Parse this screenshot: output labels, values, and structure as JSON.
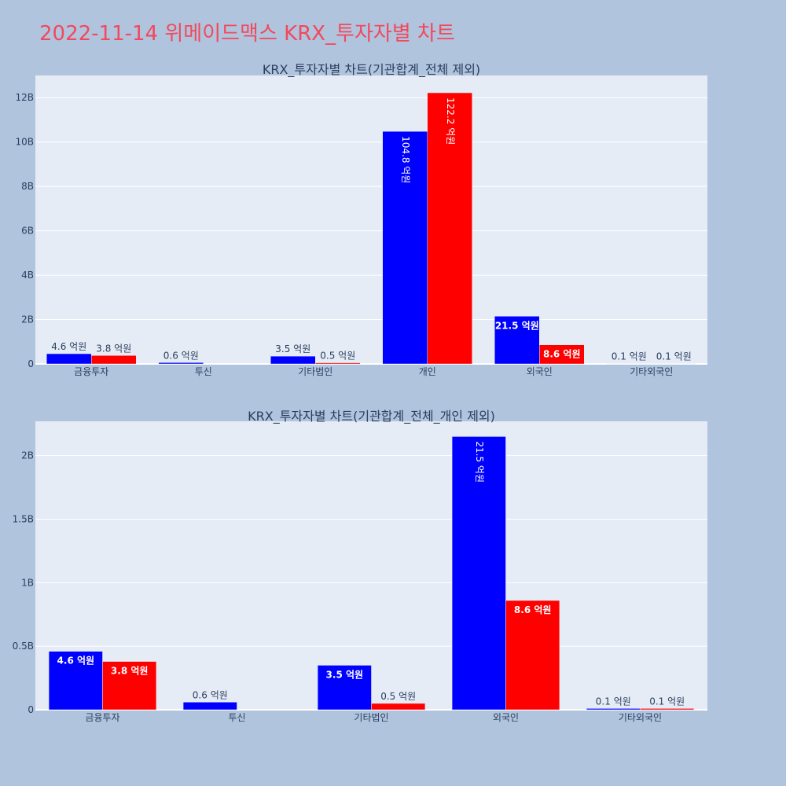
{
  "page": {
    "title": "2022-11-14 위메이드맥스 KRX_투자자별 차트"
  },
  "colors": {
    "background": "#b0c4de",
    "plot_bg": "#e5ecf6",
    "buy": "#0000ff",
    "sell": "#ff0000",
    "text": "#2a3f5f"
  },
  "chart_data": [
    {
      "type": "bar",
      "title": "KRX_투자자별 차트(기관합계_전체 제외)",
      "categories": [
        "금융투자",
        "투신",
        "기타법인",
        "개인",
        "외국인",
        "기타외국인"
      ],
      "series": [
        {
          "color": "#0000ff",
          "values": [
            460000000,
            60000000,
            350000000,
            10480000000,
            2150000000,
            10000000
          ],
          "labels": [
            "4.6 억원",
            "0.6 억원",
            "3.5 억원",
            "104.8 억원",
            "21.5 억원",
            "0.1 억원"
          ]
        },
        {
          "color": "#ff0000",
          "values": [
            380000000,
            0,
            50000000,
            12220000000,
            860000000,
            10000000
          ],
          "labels": [
            "3.8 억원",
            "",
            "0.5 억원",
            "122.2 억원",
            "8.6 억원",
            "0.1 억원"
          ]
        }
      ],
      "ylim": [
        0,
        13000000000
      ],
      "yticks": [
        0,
        2000000000,
        4000000000,
        6000000000,
        8000000000,
        10000000000,
        12000000000
      ],
      "ytick_labels": [
        "0",
        "2B",
        "4B",
        "6B",
        "8B",
        "10B",
        "12B"
      ],
      "grid": true
    },
    {
      "type": "bar",
      "title": "KRX_투자자별 차트(기관합계_전체_개인 제외)",
      "categories": [
        "금융투자",
        "투신",
        "기타법인",
        "외국인",
        "기타외국인"
      ],
      "series": [
        {
          "color": "#0000ff",
          "values": [
            460000000,
            60000000,
            350000000,
            2150000000,
            10000000
          ],
          "labels": [
            "4.6 억원",
            "0.6 억원",
            "3.5 억원",
            "21.5 억원",
            "0.1 억원"
          ]
        },
        {
          "color": "#ff0000",
          "values": [
            380000000,
            0,
            50000000,
            860000000,
            10000000
          ],
          "labels": [
            "3.8 억원",
            "",
            "0.5 억원",
            "8.6 억원",
            "0.1 억원"
          ]
        }
      ],
      "ylim": [
        0,
        2270000000
      ],
      "yticks": [
        0,
        500000000,
        1000000000,
        1500000000,
        2000000000
      ],
      "ytick_labels": [
        "0",
        "0.5B",
        "1B",
        "1.5B",
        "2B"
      ],
      "grid": true
    }
  ]
}
